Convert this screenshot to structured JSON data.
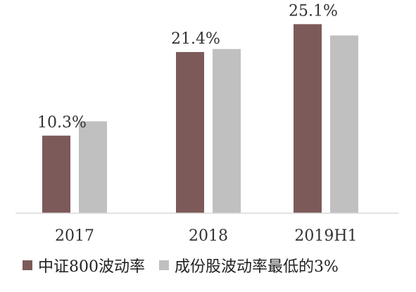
{
  "chart_data": {
    "type": "bar",
    "title": "",
    "xlabel": "",
    "ylabel": "",
    "categories": [
      "2017",
      "2018",
      "2019H1"
    ],
    "series": [
      {
        "name": "中证800波动率",
        "color": "#7b5a59",
        "values": [
          10.3,
          21.4,
          25.1
        ]
      },
      {
        "name": "成份股波动率最低的3%",
        "color": "#c0c0c0",
        "values": [
          12.2,
          21.8,
          23.6
        ]
      }
    ],
    "data_labels": [
      "10.3%",
      "21.4%",
      "25.1%"
    ],
    "ylim": [
      0,
      27
    ],
    "grid": false,
    "legend_position": "bottom"
  }
}
